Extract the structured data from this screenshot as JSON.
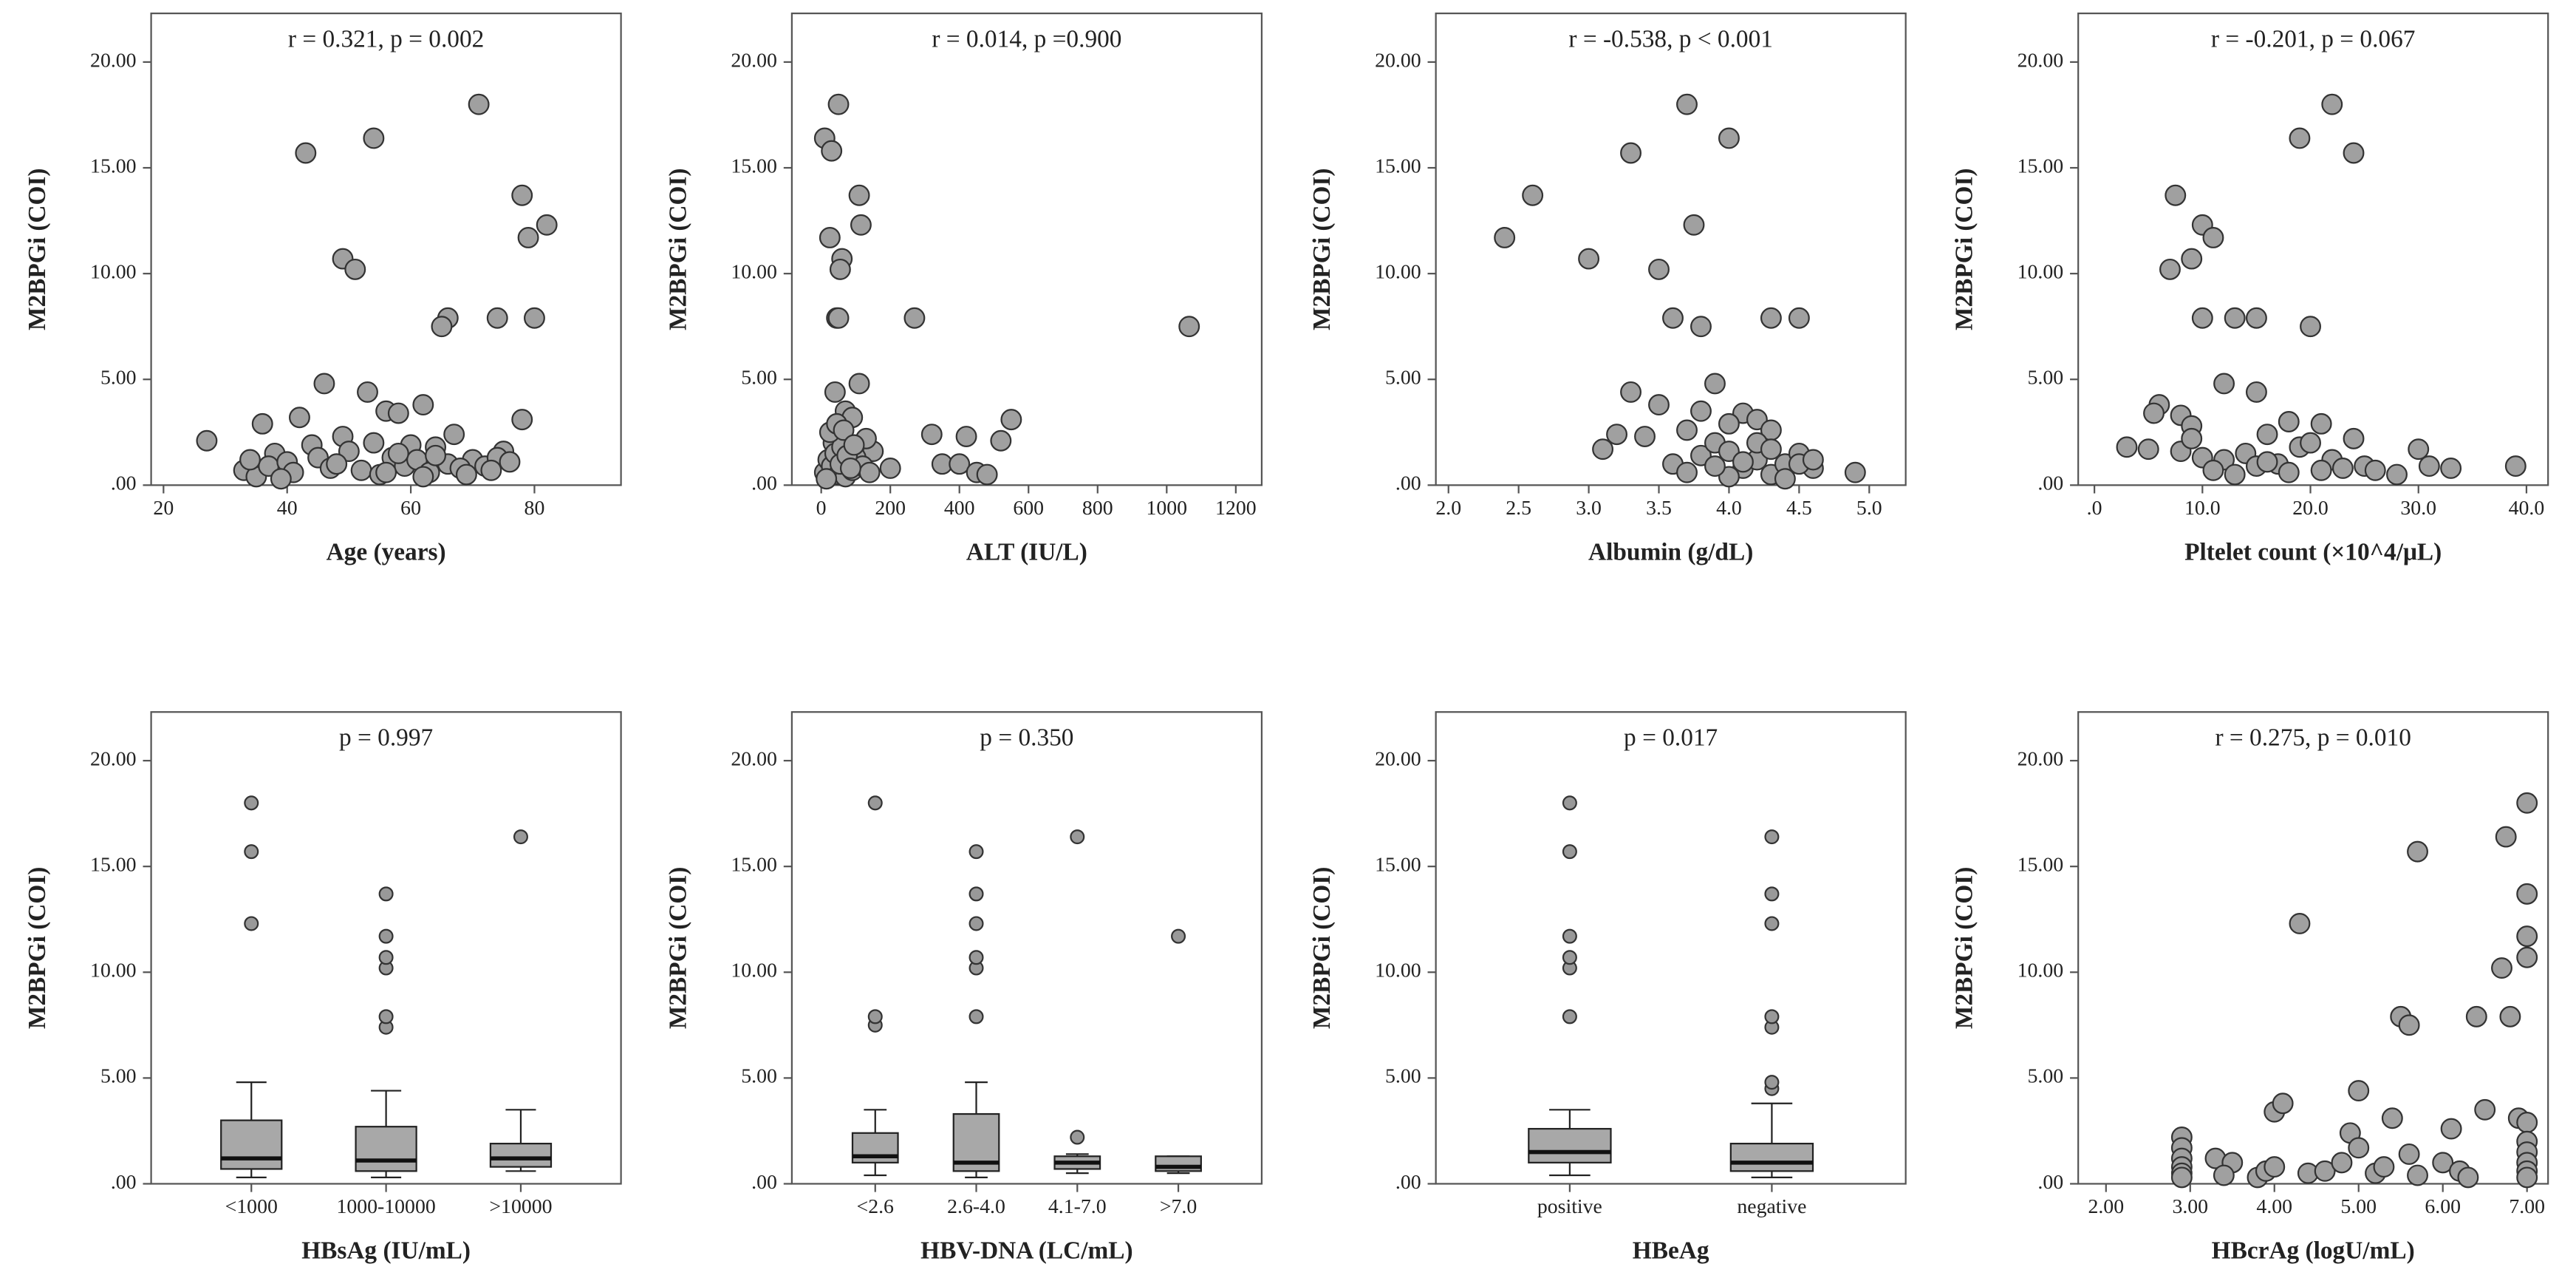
{
  "chart_data": [
    {
      "type": "scatter",
      "annotation": "r = 0.321, p = 0.002",
      "x_label": "Age (years)",
      "y_label": "M2BPGi (COI)",
      "color": "#a0a0a0",
      "x": [
        43,
        54,
        71,
        78,
        82,
        79,
        49,
        51,
        66,
        65,
        74,
        80,
        46,
        53,
        78,
        36,
        42,
        56,
        58,
        62,
        27,
        67,
        49,
        38,
        44,
        54,
        57,
        60,
        64,
        70,
        75,
        33,
        35,
        37,
        40,
        41,
        45,
        47,
        50,
        52,
        55,
        59,
        61,
        63,
        66,
        68,
        72,
        74,
        34,
        39,
        48,
        56,
        58,
        62,
        64,
        69,
        73,
        76
      ],
      "values": [
        15.7,
        16.4,
        18,
        13.7,
        12.3,
        11.7,
        10.7,
        10.2,
        7.9,
        7.5,
        7.9,
        7.9,
        4.8,
        4.4,
        3.1,
        2.9,
        3.2,
        3.5,
        3.4,
        3.8,
        2.1,
        2.4,
        2.3,
        1.5,
        1.9,
        2.0,
        1.3,
        1.9,
        1.8,
        1.2,
        1.6,
        0.7,
        0.4,
        0.9,
        1.1,
        0.6,
        1.3,
        0.8,
        1.6,
        0.7,
        0.5,
        0.9,
        1.2,
        0.6,
        1.0,
        0.8,
        0.9,
        1.3,
        1.2,
        0.3,
        1.0,
        0.6,
        1.5,
        0.4,
        1.4,
        0.5,
        0.7,
        1.1
      ],
      "xlim": [
        18,
        94
      ],
      "xticks": [
        20,
        40,
        60,
        80
      ],
      "ylim": [
        0,
        22.3
      ],
      "yticks": [
        {
          "value": 0,
          "label": ".00"
        },
        {
          "value": 5,
          "label": "5.00"
        },
        {
          "value": 10,
          "label": "10.00"
        },
        {
          "value": 15,
          "label": "15.00"
        },
        {
          "value": 20,
          "label": "20.00"
        }
      ]
    },
    {
      "type": "scatter",
      "annotation": "r = 0.014, p =0.900",
      "x_label": "ALT (IU/L)",
      "y_label": "M2BPGi (COI)",
      "color": "#a0a0a0",
      "x": [
        10,
        30,
        50,
        110,
        115,
        25,
        60,
        55,
        45,
        50,
        270,
        1065,
        110,
        40,
        550,
        520,
        320,
        420,
        70,
        90,
        350,
        400,
        450,
        480,
        200,
        150,
        10,
        20,
        30,
        35,
        40,
        50,
        60,
        70,
        80,
        90,
        100,
        120,
        130,
        140,
        25,
        45,
        55,
        65,
        75,
        15,
        85,
        95
      ],
      "values": [
        16.4,
        15.8,
        18,
        13.7,
        12.3,
        11.7,
        10.7,
        10.2,
        7.9,
        7.9,
        7.9,
        7.5,
        4.8,
        4.4,
        3.1,
        2.1,
        2.4,
        2.3,
        3.5,
        3.2,
        1.0,
        1.0,
        0.6,
        0.5,
        0.8,
        1.6,
        0.6,
        1.2,
        0.9,
        2.0,
        1.5,
        0.5,
        1.8,
        0.4,
        1.1,
        0.7,
        1.3,
        0.9,
        2.2,
        0.6,
        2.5,
        2.9,
        1.0,
        2.6,
        1.4,
        0.3,
        0.8,
        1.9
      ],
      "xlim": [
        -85,
        1275
      ],
      "xticks": [
        0,
        200,
        400,
        600,
        800,
        1000,
        1200
      ],
      "ylim": [
        0,
        22.3
      ],
      "yticks": [
        {
          "value": 0,
          "label": ".00"
        },
        {
          "value": 5,
          "label": "5.00"
        },
        {
          "value": 10,
          "label": "10.00"
        },
        {
          "value": 15,
          "label": "15.00"
        },
        {
          "value": 20,
          "label": "20.00"
        }
      ]
    },
    {
      "type": "scatter",
      "annotation": "r = -0.538, p < 0.001",
      "x_label": "Albumin (g/dL)",
      "y_label": "M2BPGi (COI)",
      "color": "#a0a0a0",
      "x": [
        2.4,
        2.6,
        3.0,
        3.3,
        3.7,
        3.75,
        4.0,
        3.5,
        3.6,
        3.8,
        4.3,
        4.5,
        3.9,
        3.3,
        3.5,
        3.1,
        3.2,
        3.4,
        3.8,
        4.1,
        4.2,
        4.3,
        3.6,
        3.7,
        3.8,
        3.9,
        4.0,
        4.1,
        4.2,
        4.3,
        4.4,
        4.5,
        4.6,
        4.9,
        4.0,
        3.9,
        4.2,
        4.4,
        4.5,
        4.6,
        3.7,
        4.0,
        4.1,
        4.3
      ],
      "values": [
        11.7,
        13.7,
        10.7,
        15.7,
        18,
        12.3,
        16.4,
        10.2,
        7.9,
        7.5,
        7.9,
        7.9,
        4.8,
        4.4,
        3.8,
        1.7,
        2.4,
        2.3,
        3.5,
        3.4,
        3.1,
        2.6,
        1.0,
        0.6,
        1.4,
        2.0,
        1.6,
        0.8,
        1.2,
        0.5,
        1.0,
        1.5,
        0.8,
        0.6,
        0.4,
        0.9,
        2.0,
        0.3,
        1.0,
        1.2,
        2.6,
        2.9,
        1.1,
        1.7
      ],
      "xlim": [
        1.91,
        5.26
      ],
      "xticks": [
        {
          "value": 2,
          "label": "2.0"
        },
        {
          "value": 2.5,
          "label": "2.5"
        },
        {
          "value": 3,
          "label": "3.0"
        },
        {
          "value": 3.5,
          "label": "3.5"
        },
        {
          "value": 4,
          "label": "4.0"
        },
        {
          "value": 4.5,
          "label": "4.5"
        },
        {
          "value": 5,
          "label": "5.0"
        }
      ],
      "ylim": [
        0,
        22.3
      ],
      "yticks": [
        {
          "value": 0,
          "label": ".00"
        },
        {
          "value": 5,
          "label": "5.00"
        },
        {
          "value": 10,
          "label": "10.00"
        },
        {
          "value": 15,
          "label": "15.00"
        },
        {
          "value": 20,
          "label": "20.00"
        }
      ]
    },
    {
      "type": "scatter",
      "annotation": "r = -0.201, p = 0.067",
      "x_label": "Pltelet count (×10^4/μL)",
      "y_label": "M2BPGi (COI)",
      "color": "#a0a0a0",
      "x": [
        19,
        22,
        24,
        7.5,
        10,
        11,
        9,
        7,
        10,
        13,
        15,
        20,
        12,
        15,
        6,
        5.5,
        8,
        9,
        18,
        21,
        24,
        3,
        5,
        8,
        10,
        12,
        14,
        16,
        17,
        19,
        20,
        22,
        23,
        25,
        26,
        28,
        30,
        31,
        33,
        39,
        11,
        13,
        15,
        18,
        21,
        9,
        16
      ],
      "values": [
        16.4,
        18,
        15.7,
        13.7,
        12.3,
        11.7,
        10.7,
        10.2,
        7.9,
        7.9,
        7.9,
        7.5,
        4.8,
        4.4,
        3.8,
        3.4,
        3.3,
        2.8,
        3.0,
        2.9,
        2.2,
        1.8,
        1.7,
        1.6,
        1.3,
        1.2,
        1.5,
        2.4,
        1.0,
        1.8,
        2.0,
        1.2,
        0.8,
        0.9,
        0.7,
        0.5,
        1.7,
        0.9,
        0.8,
        0.9,
        0.7,
        0.5,
        0.9,
        0.6,
        0.7,
        2.2,
        1.1
      ],
      "xlim": [
        -1.5,
        42
      ],
      "xticks": [
        {
          "value": 0,
          "label": ".0"
        },
        {
          "value": 10,
          "label": "10.0"
        },
        {
          "value": 20,
          "label": "20.0"
        },
        {
          "value": 30,
          "label": "30.0"
        },
        {
          "value": 40,
          "label": "40.0"
        }
      ],
      "ylim": [
        0,
        22.3
      ],
      "yticks": [
        {
          "value": 0,
          "label": ".00"
        },
        {
          "value": 5,
          "label": "5.00"
        },
        {
          "value": 10,
          "label": "10.00"
        },
        {
          "value": 15,
          "label": "15.00"
        },
        {
          "value": 20,
          "label": "20.00"
        }
      ]
    },
    {
      "type": "box",
      "annotation": "p = 0.997",
      "x_label": "HBsAg (IU/mL)",
      "y_label": "M2BPGi (COI)",
      "color": "#a8a8a8",
      "categories": [
        "<1000",
        "1000-10000",
        ">10000"
      ],
      "boxes": [
        {
          "low": 0.3,
          "q1": 0.7,
          "median": 1.2,
          "q3": 3.0,
          "high": 4.8,
          "outliers": [
            12.3,
            15.7,
            18
          ]
        },
        {
          "low": 0.3,
          "q1": 0.6,
          "median": 1.1,
          "q3": 2.7,
          "high": 4.4,
          "outliers": [
            7.4,
            7.9,
            10.2,
            10.7,
            11.7,
            13.7
          ]
        },
        {
          "low": 0.6,
          "q1": 0.8,
          "median": 1.2,
          "q3": 1.9,
          "high": 3.5,
          "outliers": [
            16.4
          ]
        }
      ],
      "ylim": [
        0,
        22.3
      ],
      "yticks": [
        {
          "value": 0,
          "label": ".00"
        },
        {
          "value": 5,
          "label": "5.00"
        },
        {
          "value": 10,
          "label": "10.00"
        },
        {
          "value": 15,
          "label": "15.00"
        },
        {
          "value": 20,
          "label": "20.00"
        }
      ]
    },
    {
      "type": "box",
      "annotation": "p = 0.350",
      "x_label": "HBV-DNA (LC/mL)",
      "y_label": "M2BPGi (COI)",
      "color": "#a8a8a8",
      "categories": [
        "<2.6",
        "2.6-4.0",
        "4.1-7.0",
        ">7.0"
      ],
      "boxes": [
        {
          "low": 0.4,
          "q1": 1.0,
          "median": 1.3,
          "q3": 2.4,
          "high": 3.5,
          "outliers": [
            7.5,
            7.9,
            18
          ]
        },
        {
          "low": 0.3,
          "q1": 0.6,
          "median": 1.0,
          "q3": 3.3,
          "high": 4.8,
          "outliers": [
            7.9,
            10.2,
            10.7,
            12.3,
            13.7,
            15.7
          ]
        },
        {
          "low": 0.5,
          "q1": 0.7,
          "median": 1.0,
          "q3": 1.3,
          "high": 1.4,
          "outliers": [
            2.2,
            16.4
          ]
        },
        {
          "low": 0.5,
          "q1": 0.6,
          "median": 0.8,
          "q3": 1.3,
          "high": 1.3,
          "outliers": [
            11.7
          ]
        }
      ],
      "ylim": [
        0,
        22.3
      ],
      "yticks": [
        {
          "value": 0,
          "label": ".00"
        },
        {
          "value": 5,
          "label": "5.00"
        },
        {
          "value": 10,
          "label": "10.00"
        },
        {
          "value": 15,
          "label": "15.00"
        },
        {
          "value": 20,
          "label": "20.00"
        }
      ]
    },
    {
      "type": "box",
      "annotation": "p = 0.017",
      "x_label": "HBeAg",
      "y_label": "M2BPGi (COI)",
      "color": "#a8a8a8",
      "categories": [
        "positive",
        "negative"
      ],
      "boxes": [
        {
          "low": 0.4,
          "q1": 1.0,
          "median": 1.5,
          "q3": 2.6,
          "high": 3.5,
          "outliers": [
            7.9,
            10.2,
            10.7,
            11.7,
            15.7,
            18
          ]
        },
        {
          "low": 0.3,
          "q1": 0.6,
          "median": 1.0,
          "q3": 1.9,
          "high": 3.8,
          "outliers": [
            4.5,
            4.8,
            7.4,
            7.9,
            12.3,
            13.7,
            16.4
          ]
        }
      ],
      "ylim": [
        0,
        22.3
      ],
      "yticks": [
        {
          "value": 0,
          "label": ".00"
        },
        {
          "value": 5,
          "label": "5.00"
        },
        {
          "value": 10,
          "label": "10.00"
        },
        {
          "value": 15,
          "label": "15.00"
        },
        {
          "value": 20,
          "label": "20.00"
        }
      ]
    },
    {
      "type": "scatter",
      "annotation": "r = 0.275, p = 0.010",
      "x_label": "HBcrAg (logU/mL)",
      "y_label": "M2BPGi (COI)",
      "color": "#a0a0a0",
      "x": [
        2.9,
        2.9,
        2.9,
        2.9,
        2.9,
        2.9,
        3.3,
        3.5,
        3.4,
        3.8,
        3.9,
        4.0,
        4.0,
        4.1,
        4.3,
        4.4,
        4.6,
        4.8,
        4.9,
        5.0,
        5.0,
        5.2,
        5.3,
        5.4,
        5.5,
        5.6,
        5.6,
        5.7,
        5.7,
        6.0,
        6.2,
        6.1,
        6.3,
        6.4,
        6.5,
        6.7,
        6.75,
        6.8,
        6.9,
        7.0,
        7.0,
        7.0,
        7.0,
        7.0,
        7.0,
        7.0,
        7.0,
        7.0,
        7.0
      ],
      "values": [
        2.2,
        1.7,
        1.2,
        0.8,
        0.5,
        0.3,
        1.2,
        1.0,
        0.4,
        0.3,
        0.6,
        0.8,
        3.4,
        3.8,
        12.3,
        0.5,
        0.6,
        1.0,
        2.4,
        4.4,
        1.7,
        0.5,
        0.8,
        3.1,
        7.9,
        7.5,
        1.4,
        15.7,
        0.4,
        1.0,
        0.6,
        2.6,
        0.3,
        7.9,
        3.5,
        10.2,
        16.4,
        7.9,
        3.1,
        18,
        13.7,
        11.7,
        10.7,
        2.9,
        2.0,
        1.5,
        1.0,
        0.6,
        0.3
      ],
      "xlim": [
        1.67,
        7.25
      ],
      "xticks": [
        {
          "value": 2,
          "label": "2.00"
        },
        {
          "value": 3,
          "label": "3.00"
        },
        {
          "value": 4,
          "label": "4.00"
        },
        {
          "value": 5,
          "label": "5.00"
        },
        {
          "value": 6,
          "label": "6.00"
        },
        {
          "value": 7,
          "label": "7.00"
        }
      ],
      "ylim": [
        0,
        22.3
      ],
      "yticks": [
        {
          "value": 0,
          "label": ".00"
        },
        {
          "value": 5,
          "label": "5.00"
        },
        {
          "value": 10,
          "label": "10.00"
        },
        {
          "value": 15,
          "label": "15.00"
        },
        {
          "value": 20,
          "label": "20.00"
        }
      ]
    }
  ]
}
